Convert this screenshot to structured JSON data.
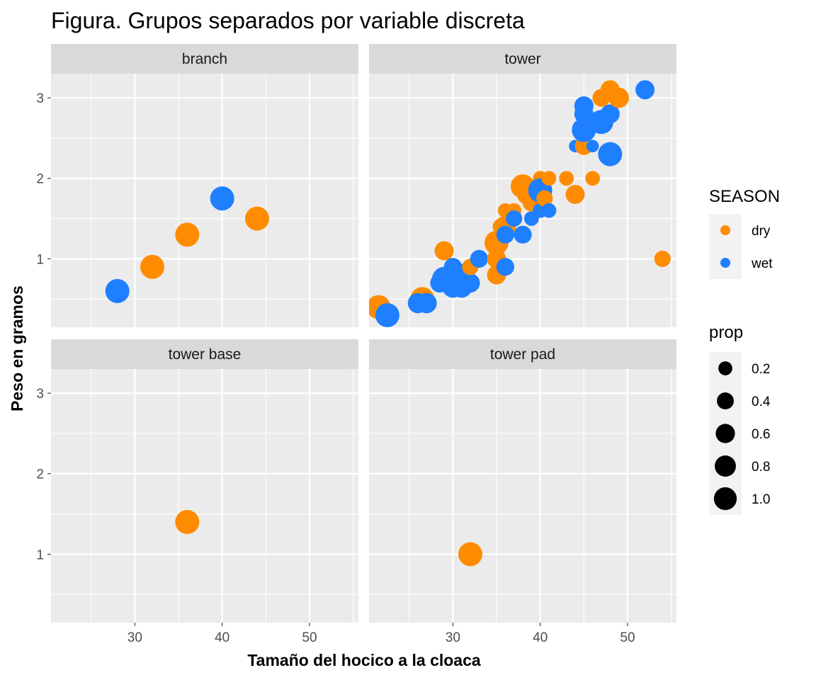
{
  "chart_data": {
    "type": "scatter",
    "title": "Figura. Grupos separados por variable discreta",
    "xlabel": "Tamaño del hocico a la cloaca",
    "ylabel": "Peso en gramos",
    "xlim": [
      20.4,
      55.6
    ],
    "ylim": [
      0.15,
      3.3
    ],
    "x_ticks": [
      30,
      40,
      50
    ],
    "x_tick_labels": [
      "30",
      "40",
      "50"
    ],
    "y_ticks": [
      1,
      2,
      3
    ],
    "y_tick_labels": [
      "1",
      "2",
      "3"
    ],
    "grid": true,
    "facets": [
      {
        "name": "branch",
        "points": [
          {
            "x": 28,
            "y": 0.6,
            "season": "wet",
            "prop": 1.0
          },
          {
            "x": 32,
            "y": 0.9,
            "season": "dry",
            "prop": 1.0
          },
          {
            "x": 36,
            "y": 1.3,
            "season": "dry",
            "prop": 1.0
          },
          {
            "x": 40,
            "y": 1.75,
            "season": "wet",
            "prop": 1.0
          },
          {
            "x": 44,
            "y": 1.5,
            "season": "dry",
            "prop": 1.0
          }
        ]
      },
      {
        "name": "tower",
        "points": [
          {
            "x": 21.5,
            "y": 0.4,
            "season": "dry",
            "prop": 1.0
          },
          {
            "x": 22.5,
            "y": 0.3,
            "season": "wet",
            "prop": 1.0
          },
          {
            "x": 26.5,
            "y": 0.5,
            "season": "dry",
            "prop": 1.0
          },
          {
            "x": 26,
            "y": 0.45,
            "season": "wet",
            "prop": 0.6
          },
          {
            "x": 27,
            "y": 0.45,
            "season": "wet",
            "prop": 0.6
          },
          {
            "x": 29,
            "y": 1.1,
            "season": "dry",
            "prop": 0.5
          },
          {
            "x": 28.5,
            "y": 0.7,
            "season": "wet",
            "prop": 0.5
          },
          {
            "x": 29,
            "y": 0.75,
            "season": "wet",
            "prop": 1.0
          },
          {
            "x": 30,
            "y": 0.9,
            "season": "wet",
            "prop": 0.4
          },
          {
            "x": 30,
            "y": 0.65,
            "season": "wet",
            "prop": 0.7
          },
          {
            "x": 30.5,
            "y": 0.8,
            "season": "wet",
            "prop": 1.0
          },
          {
            "x": 31,
            "y": 0.65,
            "season": "wet",
            "prop": 0.7
          },
          {
            "x": 32,
            "y": 0.7,
            "season": "wet",
            "prop": 0.5
          },
          {
            "x": 32,
            "y": 0.9,
            "season": "dry",
            "prop": 0.3
          },
          {
            "x": 33,
            "y": 1.0,
            "season": "wet",
            "prop": 0.4
          },
          {
            "x": 35,
            "y": 1.2,
            "season": "dry",
            "prop": 1.0
          },
          {
            "x": 35,
            "y": 1.0,
            "season": "dry",
            "prop": 0.5
          },
          {
            "x": 35,
            "y": 0.8,
            "season": "dry",
            "prop": 0.5
          },
          {
            "x": 35.5,
            "y": 1.4,
            "season": "dry",
            "prop": 0.3
          },
          {
            "x": 36,
            "y": 1.6,
            "season": "dry",
            "prop": 0.2
          },
          {
            "x": 36,
            "y": 1.4,
            "season": "dry",
            "prop": 0.7
          },
          {
            "x": 36,
            "y": 1.3,
            "season": "wet",
            "prop": 0.4
          },
          {
            "x": 36,
            "y": 0.9,
            "season": "wet",
            "prop": 0.4
          },
          {
            "x": 37,
            "y": 1.6,
            "season": "dry",
            "prop": 0.2
          },
          {
            "x": 37,
            "y": 1.5,
            "season": "wet",
            "prop": 0.3
          },
          {
            "x": 38,
            "y": 1.9,
            "season": "dry",
            "prop": 1.0
          },
          {
            "x": 38,
            "y": 1.3,
            "season": "wet",
            "prop": 0.4
          },
          {
            "x": 38.5,
            "y": 1.8,
            "season": "dry",
            "prop": 0.6
          },
          {
            "x": 39,
            "y": 1.5,
            "season": "wet",
            "prop": 0.2
          },
          {
            "x": 39,
            "y": 1.7,
            "season": "dry",
            "prop": 0.4
          },
          {
            "x": 40,
            "y": 2.0,
            "season": "dry",
            "prop": 0.2
          },
          {
            "x": 40,
            "y": 1.85,
            "season": "wet",
            "prop": 1.0
          },
          {
            "x": 40,
            "y": 1.6,
            "season": "wet",
            "prop": 0.2
          },
          {
            "x": 40.5,
            "y": 1.75,
            "season": "dry",
            "prop": 0.3
          },
          {
            "x": 41,
            "y": 2.0,
            "season": "dry",
            "prop": 0.2
          },
          {
            "x": 41,
            "y": 1.6,
            "season": "wet",
            "prop": 0.2
          },
          {
            "x": 43,
            "y": 2.0,
            "season": "dry",
            "prop": 0.2
          },
          {
            "x": 44,
            "y": 1.8,
            "season": "dry",
            "prop": 0.5
          },
          {
            "x": 44,
            "y": 2.4,
            "season": "wet",
            "prop": 0.1
          },
          {
            "x": 45,
            "y": 2.4,
            "season": "dry",
            "prop": 0.4
          },
          {
            "x": 45,
            "y": 2.6,
            "season": "wet",
            "prop": 1.0
          },
          {
            "x": 45,
            "y": 2.8,
            "season": "wet",
            "prop": 0.5
          },
          {
            "x": 45,
            "y": 2.9,
            "season": "wet",
            "prop": 0.5
          },
          {
            "x": 46,
            "y": 2.0,
            "season": "dry",
            "prop": 0.2
          },
          {
            "x": 46,
            "y": 2.4,
            "season": "wet",
            "prop": 0.1
          },
          {
            "x": 47,
            "y": 3.0,
            "season": "dry",
            "prop": 0.4
          },
          {
            "x": 47,
            "y": 2.7,
            "season": "wet",
            "prop": 1.0
          },
          {
            "x": 48,
            "y": 3.1,
            "season": "dry",
            "prop": 0.5
          },
          {
            "x": 48,
            "y": 2.8,
            "season": "wet",
            "prop": 0.5
          },
          {
            "x": 48,
            "y": 2.3,
            "season": "wet",
            "prop": 1.0
          },
          {
            "x": 49,
            "y": 3.0,
            "season": "dry",
            "prop": 0.6
          },
          {
            "x": 52,
            "y": 3.1,
            "season": "wet",
            "prop": 0.5
          },
          {
            "x": 54,
            "y": 1.0,
            "season": "dry",
            "prop": 0.3
          }
        ]
      },
      {
        "name": "tower base",
        "points": [
          {
            "x": 36,
            "y": 1.4,
            "season": "dry",
            "prop": 1.0
          }
        ]
      },
      {
        "name": "tower pad",
        "points": [
          {
            "x": 32,
            "y": 1.0,
            "season": "dry",
            "prop": 1.0
          }
        ]
      }
    ],
    "legends": [
      {
        "title": "SEASON",
        "type": "color",
        "entries": [
          {
            "label": "dry",
            "color": "#ff8c00"
          },
          {
            "label": "wet",
            "color": "#1e7fff"
          }
        ]
      },
      {
        "title": "prop",
        "type": "size",
        "entries": [
          {
            "label": "0.2",
            "value": 0.2
          },
          {
            "label": "0.4",
            "value": 0.4
          },
          {
            "label": "0.6",
            "value": 0.6
          },
          {
            "label": "0.8",
            "value": 0.8
          },
          {
            "label": "1.0",
            "value": 1.0
          }
        ]
      }
    ],
    "legend_position": "right",
    "colors": {
      "dry": "#ff8c00",
      "wet": "#1e7fff"
    }
  }
}
